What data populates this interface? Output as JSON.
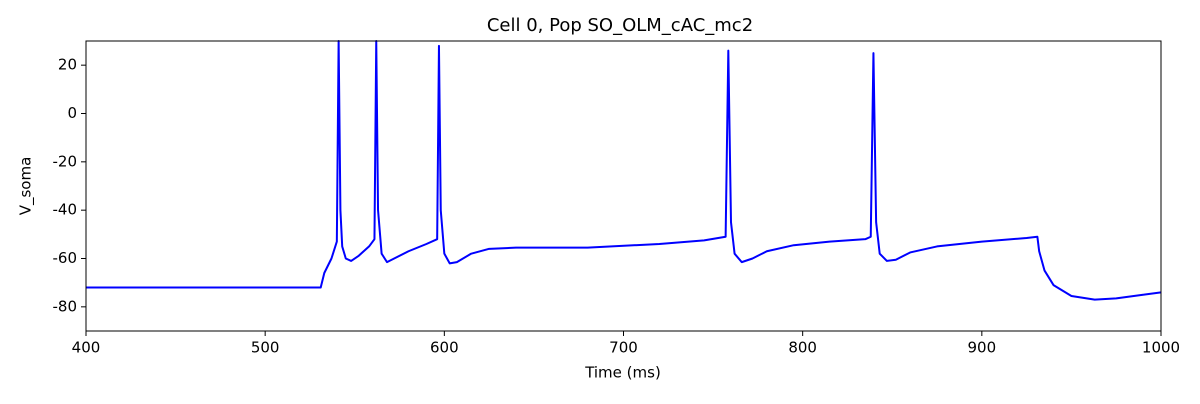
{
  "chart_data": {
    "type": "line",
    "title": "Cell 0, Pop SO_OLM_cAC_mc2",
    "x_label": "Time (ms)",
    "y_label": "V_soma",
    "x": [
      400,
      531,
      533,
      537,
      540,
      541,
      542,
      543,
      545,
      548,
      552,
      558,
      561,
      562,
      563,
      565,
      568,
      572,
      580,
      590,
      596,
      597,
      598,
      600,
      603,
      607,
      615,
      625,
      640,
      680,
      720,
      745,
      757,
      758.5,
      760,
      762,
      766,
      772,
      780,
      795,
      815,
      835,
      838,
      839.5,
      841,
      843,
      847,
      852,
      860,
      875,
      900,
      925,
      931,
      932,
      935,
      940,
      950,
      963,
      975,
      990,
      1000
    ],
    "series": [
      {
        "name": "V_soma",
        "color": "#0000ff",
        "values": [
          -72,
          -72,
          -66,
          -60,
          -53,
          30,
          -40,
          -55,
          -60,
          -61,
          -59,
          -55,
          -52,
          30,
          -40,
          -58,
          -61.5,
          -60,
          -57,
          -54,
          -52,
          28,
          -40,
          -58,
          -62,
          -61.5,
          -58,
          -56,
          -55.5,
          -55.5,
          -54,
          -52.5,
          -51,
          26,
          -45,
          -58,
          -61.5,
          -60,
          -57,
          -54.5,
          -53,
          -52,
          -51,
          25,
          -45,
          -58,
          -61,
          -60.5,
          -57.5,
          -55,
          -53,
          -51.5,
          -51,
          -57,
          -65,
          -71,
          -75.5,
          -77,
          -76.5,
          -75,
          -74
        ]
      }
    ],
    "xlim": [
      400,
      1000
    ],
    "ylim": [
      -90,
      30
    ],
    "xticks": [
      400,
      500,
      600,
      700,
      800,
      900,
      1000
    ],
    "yticks": [
      -80,
      -60,
      -40,
      -20,
      0,
      20
    ]
  }
}
